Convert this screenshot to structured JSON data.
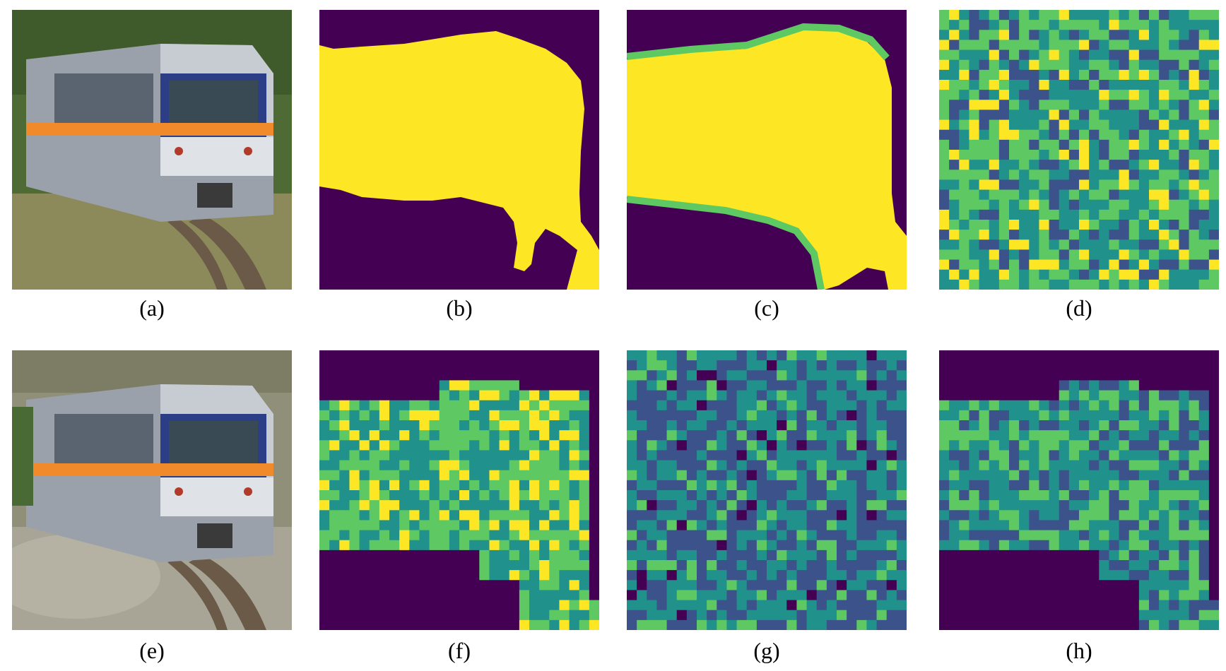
{
  "figure": {
    "panels": [
      {
        "id": "a",
        "label": "(a)",
        "kind": "photo"
      },
      {
        "id": "b",
        "label": "(b)",
        "kind": "mask"
      },
      {
        "id": "c",
        "label": "(c)",
        "kind": "heatmap-binary"
      },
      {
        "id": "d",
        "label": "(d)",
        "kind": "heatmap"
      },
      {
        "id": "e",
        "label": "(e)",
        "kind": "photo-inpainted"
      },
      {
        "id": "f",
        "label": "(f)",
        "kind": "heatmap-masked"
      },
      {
        "id": "g",
        "label": "(g)",
        "kind": "heatmap"
      },
      {
        "id": "h",
        "label": "(h)",
        "kind": "heatmap-masked"
      }
    ],
    "colormap": {
      "low": "#440154",
      "mid_low": "#3b528b",
      "mid": "#21918c",
      "mid_high": "#5ec962",
      "high": "#fde725"
    },
    "photo_colors": {
      "foliage": "#5b7a3a",
      "train_body": "#9aa0a8",
      "train_stripe_blue": "#2b3e86",
      "train_stripe_orange": "#f08a2a",
      "rail": "#5a4a3a",
      "blur_bg": "#8f8f7f"
    }
  }
}
